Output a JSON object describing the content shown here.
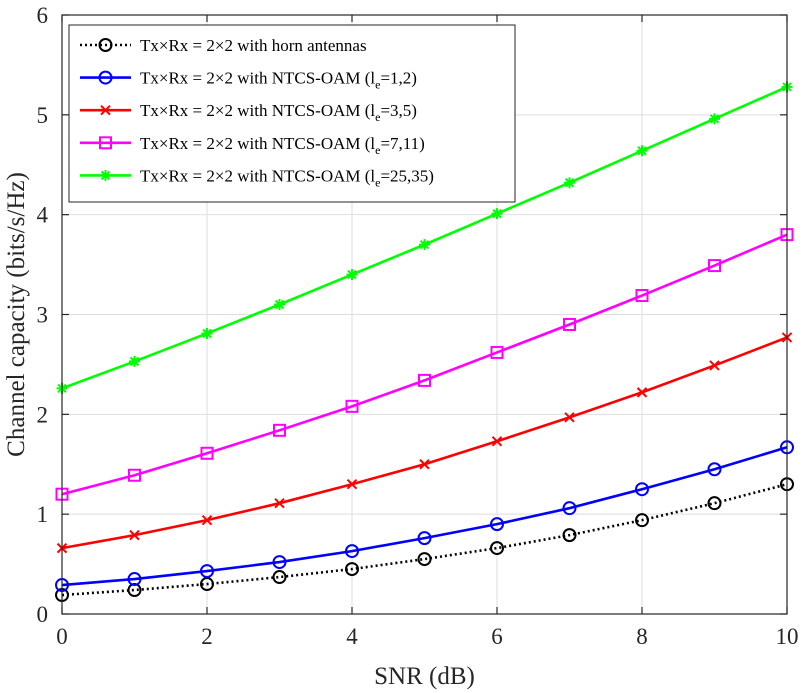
{
  "chart_data": {
    "type": "line",
    "title": "",
    "xlabel": "SNR (dB)",
    "ylabel": "Channel capacity (bits/s/Hz)",
    "xlim": [
      0,
      10
    ],
    "ylim": [
      0,
      6
    ],
    "xticks": [
      0,
      2,
      4,
      6,
      8,
      10
    ],
    "yticks": [
      0,
      1,
      2,
      3,
      4,
      5,
      6
    ],
    "grid": true,
    "legend_position": "top-left",
    "x": [
      0,
      1,
      2,
      3,
      4,
      5,
      6,
      7,
      8,
      9,
      10
    ],
    "series": [
      {
        "name": "Tx×Rx = 2×2 with horn antennas",
        "label_main": "Tx×Rx = 2×2 with horn antennas",
        "label_sub": "",
        "label_tail": "",
        "color": "#000000",
        "line_style": "dotted",
        "marker": "circle",
        "values": [
          0.19,
          0.24,
          0.3,
          0.37,
          0.45,
          0.55,
          0.66,
          0.79,
          0.94,
          1.11,
          1.3
        ]
      },
      {
        "name": "Tx×Rx = 2×2 with NTCS-OAM (le=1,2)",
        "label_main": "Tx×Rx = 2×2 with NTCS-OAM (l",
        "label_sub": "e",
        "label_tail": "=1,2)",
        "color": "#0000ff",
        "line_style": "solid",
        "marker": "circle",
        "values": [
          0.29,
          0.35,
          0.43,
          0.52,
          0.63,
          0.76,
          0.9,
          1.06,
          1.25,
          1.45,
          1.67
        ]
      },
      {
        "name": "Tx×Rx = 2×2 with NTCS-OAM (le=3,5)",
        "label_main": "Tx×Rx = 2×2 with NTCS-OAM (l",
        "label_sub": "e",
        "label_tail": "=3,5)",
        "color": "#ff0000",
        "line_style": "solid",
        "marker": "x",
        "values": [
          0.66,
          0.79,
          0.94,
          1.11,
          1.3,
          1.5,
          1.73,
          1.97,
          2.22,
          2.49,
          2.77
        ]
      },
      {
        "name": "Tx×Rx = 2×2 with NTCS-OAM (le=7,11)",
        "label_main": "Tx×Rx = 2×2 with NTCS-OAM (l",
        "label_sub": "e",
        "label_tail": "=7,11)",
        "color": "#ff00ff",
        "line_style": "solid",
        "marker": "square",
        "values": [
          1.2,
          1.39,
          1.61,
          1.84,
          2.08,
          2.34,
          2.62,
          2.9,
          3.19,
          3.49,
          3.8
        ]
      },
      {
        "name": "Tx×Rx = 2×2 with NTCS-OAM (le=25,35)",
        "label_main": "Tx×Rx = 2×2 with NTCS-OAM (l",
        "label_sub": "e",
        "label_tail": "=25,35)",
        "color": "#00ff00",
        "line_style": "solid",
        "marker": "asterisk",
        "values": [
          2.26,
          2.53,
          2.81,
          3.1,
          3.4,
          3.7,
          4.01,
          4.32,
          4.64,
          4.96,
          5.28
        ]
      }
    ]
  }
}
